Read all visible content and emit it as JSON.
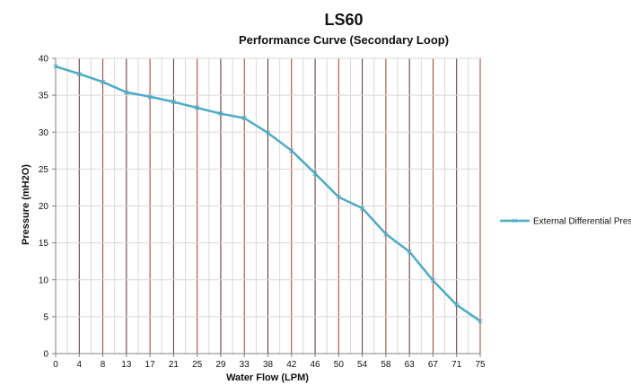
{
  "colors": {
    "series": "#4bacc6",
    "grid_dark": "#5b2e2e",
    "grid_red": "#a83a2a",
    "grid_light": "#d8d8d8",
    "axis": "#808080"
  },
  "chart_data": {
    "type": "line",
    "title": "LS60",
    "subtitle": "Performance Curve (Secondary Loop)",
    "xlabel": "Water Flow (LPM)",
    "ylabel": "Pressure (mH2O)",
    "categories": [
      "0",
      "4",
      "8",
      "13",
      "17",
      "21",
      "25",
      "29",
      "33",
      "38",
      "42",
      "46",
      "50",
      "54",
      "58",
      "63",
      "67",
      "71",
      "75"
    ],
    "y_ticks": [
      0,
      5,
      10,
      15,
      20,
      25,
      30,
      35,
      40
    ],
    "ylim": [
      0,
      40
    ],
    "grid": true,
    "legend_position": "right",
    "series": [
      {
        "name": "External Differential Pres",
        "values": [
          38.9,
          37.9,
          36.8,
          35.4,
          34.8,
          34.1,
          33.3,
          32.5,
          31.9,
          29.9,
          27.5,
          24.4,
          21.2,
          19.7,
          16.2,
          13.8,
          9.9,
          6.6,
          4.4
        ]
      }
    ]
  }
}
